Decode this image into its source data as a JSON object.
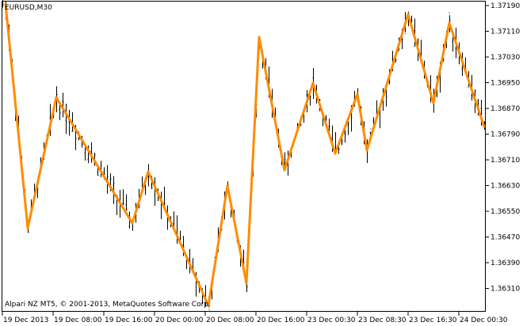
{
  "chart_data": {
    "type": "line",
    "title": "EURUSD,M30",
    "copyright": "Alpari NZ MT5, © 2001-2013, MetaQuotes Software Corp.",
    "y_ticks": [
      "1.37190",
      "1.37110",
      "1.37030",
      "1.36950",
      "1.36870",
      "1.36790",
      "1.36710",
      "1.36630",
      "1.36550",
      "1.36470",
      "1.36390",
      "1.36310"
    ],
    "ylim": [
      1.362,
      1.3721
    ],
    "x_ticks": [
      "19 Dec 2013",
      "19 Dec 08:00",
      "19 Dec 16:00",
      "20 Dec 00:00",
      "20 Dec 08:00",
      "20 Dec 16:00",
      "23 Dec 00:30",
      "23 Dec 08:30",
      "23 Dec 16:30",
      "24 Dec 00:30"
    ],
    "bars_total": 153,
    "grid": false,
    "colors": {
      "zigzag": "#ff8c00",
      "bars": "#000000",
      "background": "#ffffff"
    },
    "series": [
      {
        "type": "zigzag",
        "points": [
          {
            "bar": 1,
            "price": 1.37195
          },
          {
            "bar": 8,
            "price": 1.36498
          },
          {
            "bar": 17,
            "price": 1.36904
          },
          {
            "bar": 41,
            "price": 1.36513
          },
          {
            "bar": 46,
            "price": 1.36673
          },
          {
            "bar": 65,
            "price": 1.36257
          },
          {
            "bar": 71,
            "price": 1.36629
          },
          {
            "bar": 77,
            "price": 1.36326
          },
          {
            "bar": 81,
            "price": 1.37092
          },
          {
            "bar": 89,
            "price": 1.36678
          },
          {
            "bar": 98,
            "price": 1.36949
          },
          {
            "bar": 105,
            "price": 1.3673
          },
          {
            "bar": 112,
            "price": 1.36914
          },
          {
            "bar": 115,
            "price": 1.3674
          },
          {
            "bar": 128,
            "price": 1.37163
          },
          {
            "bar": 136,
            "price": 1.36887
          },
          {
            "bar": 141,
            "price": 1.37136
          },
          {
            "bar": 152,
            "price": 1.36813
          }
        ]
      }
    ]
  }
}
